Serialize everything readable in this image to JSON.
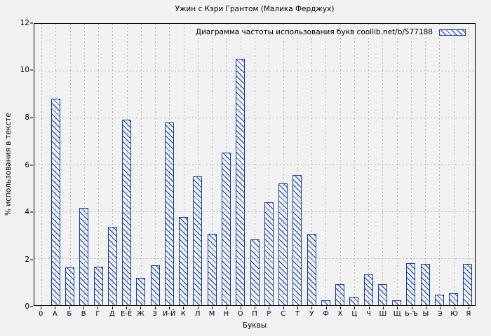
{
  "chart_data": {
    "type": "bar",
    "title": "Ужин с Кэри Грантом (Малика Ферджух)",
    "legend": "Диаграмма частоты использования букв coollib.net/b/577188",
    "legend_position": "top-right",
    "xlabel": "Буквы",
    "ylabel": "% использования в тексте",
    "origin_tick_label": "0",
    "categories": [
      "А",
      "Б",
      "В",
      "Г",
      "Д",
      "Е-Ё",
      "Ж",
      "З",
      "И-Й",
      "К",
      "Л",
      "М",
      "Н",
      "О",
      "П",
      "Р",
      "С",
      "Т",
      "У",
      "Ф",
      "Х",
      "Ц",
      "Ч",
      "Ш",
      "Щ",
      "Ь-Ъ",
      "Ы",
      "Э",
      "Ю",
      "Я"
    ],
    "values": [
      8.8,
      1.6,
      4.15,
      1.65,
      3.35,
      7.9,
      1.15,
      1.7,
      7.8,
      3.75,
      5.5,
      3.05,
      6.5,
      10.5,
      2.8,
      4.4,
      5.2,
      5.55,
      3.05,
      0.2,
      0.9,
      0.35,
      1.3,
      0.9,
      0.2,
      1.8,
      1.75,
      0.45,
      0.5,
      1.75
    ],
    "ylim": [
      0,
      12
    ],
    "yticks": [
      0,
      2,
      4,
      6,
      8,
      10,
      12
    ],
    "ygrid": [
      2,
      4,
      6,
      8,
      10
    ],
    "grid": true,
    "colors": {
      "bar_outline": "#0d3da6",
      "background": "#f2f2f2",
      "gridline": "#b4b4b4",
      "axis": "#000000"
    }
  }
}
